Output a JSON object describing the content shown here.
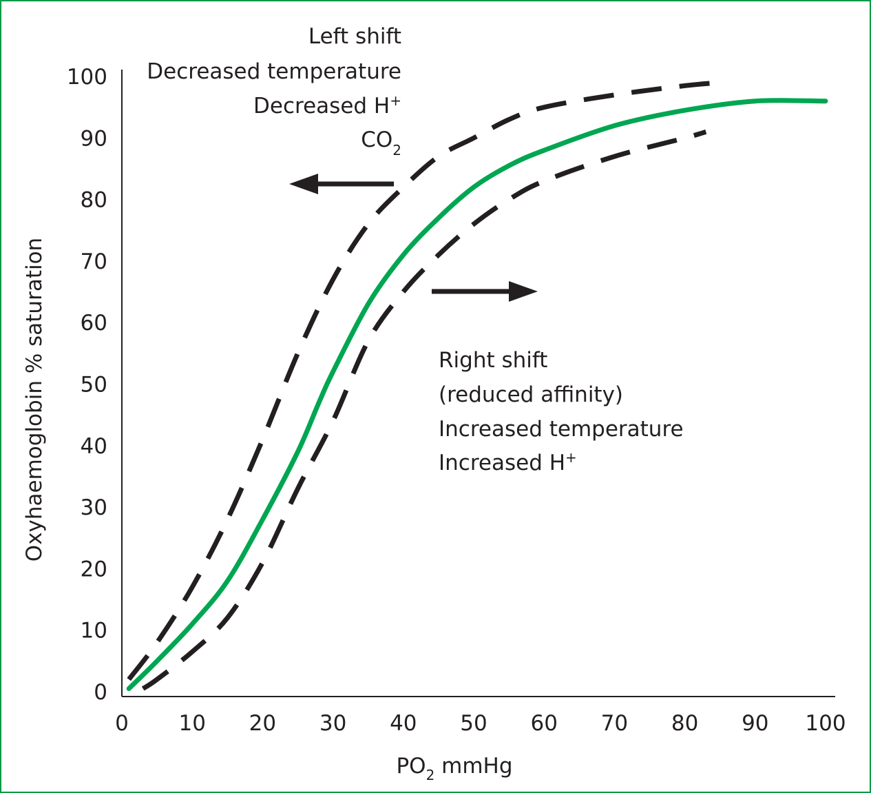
{
  "chart_data": {
    "type": "line",
    "xlabel": {
      "main": "PO",
      "sub": "2",
      "rest": " mmHg"
    },
    "ylabel": "Oxyhaemoglobin % saturation",
    "xlim": [
      0,
      100
    ],
    "ylim": [
      0,
      100
    ],
    "x_ticks": [
      "0",
      "10",
      "20",
      "30",
      "40",
      "50",
      "60",
      "70",
      "80",
      "90",
      "100"
    ],
    "y_ticks": [
      "0",
      "10",
      "20",
      "30",
      "40",
      "50",
      "60",
      "70",
      "80",
      "90",
      "100"
    ],
    "grid": false,
    "colors": {
      "normal": "#00a651",
      "shifted": "#231f20",
      "axis": "#231f20",
      "frame": "#009a44"
    },
    "series": [
      {
        "id": "normal",
        "style": "solid",
        "x": [
          1,
          5,
          10,
          15,
          20,
          25,
          28,
          30,
          35,
          40,
          45,
          50,
          55,
          60,
          70,
          80,
          90,
          100
        ],
        "y": [
          0.5,
          5,
          11,
          18,
          28,
          39,
          47,
          52,
          63,
          71,
          77,
          82,
          85.5,
          88,
          92,
          94.5,
          96,
          96
        ]
      },
      {
        "id": "left-shift",
        "style": "dashed",
        "x": [
          1,
          5,
          10,
          15,
          20,
          25,
          30,
          35,
          40,
          45,
          50,
          55,
          60,
          70,
          80,
          85
        ],
        "y": [
          2,
          8,
          17,
          28,
          41,
          55,
          67,
          76,
          82,
          87,
          90,
          93,
          95,
          97,
          98.5,
          99
        ]
      },
      {
        "id": "right-shift",
        "style": "dashed",
        "x": [
          3,
          5,
          10,
          15,
          20,
          25,
          30,
          35,
          40,
          45,
          50,
          55,
          60,
          70,
          80,
          83
        ],
        "y": [
          0.5,
          2,
          6.5,
          12,
          21,
          33,
          44,
          57,
          65,
          71,
          76,
          80,
          83,
          87,
          90,
          91
        ]
      }
    ],
    "annotations": {
      "left_shift": {
        "lines": [
          "Left shift",
          "Decreased temperature",
          "Decreased H"
        ],
        "superscript": "+",
        "co2": {
          "main": "CO",
          "sub": "2"
        }
      },
      "right_shift": {
        "lines": [
          "Right shift",
          "(reduced affinity)",
          "Increased temperature",
          "Increased H"
        ],
        "superscript": "+"
      }
    }
  }
}
